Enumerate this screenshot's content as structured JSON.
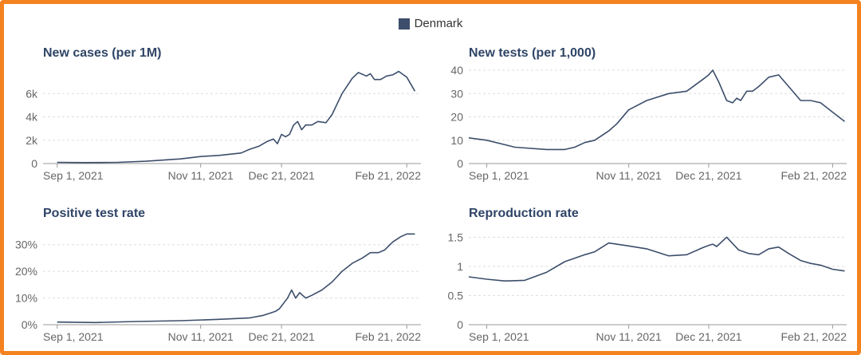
{
  "legend": {
    "label": "Denmark",
    "color": "#3c4e6b"
  },
  "chart_data": [
    {
      "type": "line",
      "title": "New cases (per 1M)",
      "xlabel": "",
      "ylabel": "",
      "x_ticks": [
        "Sep 1, 2021",
        "Nov 11, 2021",
        "Dec 21, 2021",
        "Feb 21, 2022"
      ],
      "y_ticks": [
        "0",
        "2k",
        "4k",
        "6k"
      ],
      "y_tick_values": [
        0,
        2000,
        4000,
        6000
      ],
      "ylim": [
        0,
        8000
      ],
      "x": [
        "2021-09-01",
        "2021-09-15",
        "2021-10-01",
        "2021-10-15",
        "2021-11-01",
        "2021-11-11",
        "2021-11-20",
        "2021-12-01",
        "2021-12-05",
        "2021-12-10",
        "2021-12-14",
        "2021-12-17",
        "2021-12-19",
        "2021-12-21",
        "2021-12-23",
        "2021-12-25",
        "2021-12-27",
        "2021-12-29",
        "2021-12-31",
        "2022-01-02",
        "2022-01-05",
        "2022-01-08",
        "2022-01-12",
        "2022-01-15",
        "2022-01-20",
        "2022-01-25",
        "2022-01-28",
        "2022-02-01",
        "2022-02-03",
        "2022-02-05",
        "2022-02-08",
        "2022-02-11",
        "2022-02-14",
        "2022-02-17",
        "2022-02-21",
        "2022-02-25"
      ],
      "series": [
        {
          "name": "Denmark",
          "values": [
            100,
            80,
            100,
            200,
            400,
            600,
            700,
            900,
            1200,
            1500,
            1900,
            2100,
            1700,
            2500,
            2300,
            2500,
            3300,
            3600,
            2900,
            3300,
            3300,
            3600,
            3500,
            4200,
            6000,
            7300,
            7800,
            7500,
            7700,
            7200,
            7200,
            7500,
            7600,
            7900,
            7400,
            6200
          ]
        }
      ]
    },
    {
      "type": "line",
      "title": "New tests (per 1,000)",
      "xlabel": "",
      "ylabel": "",
      "x_ticks": [
        "Sep 1, 2021",
        "Nov 11, 2021",
        "Dec 21, 2021",
        "Feb 21, 2022"
      ],
      "y_ticks": [
        "0",
        "10",
        "20",
        "30",
        "40"
      ],
      "y_tick_values": [
        0,
        10,
        20,
        30,
        40
      ],
      "ylim": [
        0,
        40
      ],
      "x": [
        "2021-08-23",
        "2021-09-01",
        "2021-09-15",
        "2021-10-01",
        "2021-10-10",
        "2021-10-15",
        "2021-10-20",
        "2021-10-25",
        "2021-11-01",
        "2021-11-05",
        "2021-11-11",
        "2021-11-20",
        "2021-12-01",
        "2021-12-10",
        "2021-12-18",
        "2021-12-21",
        "2021-12-23",
        "2021-12-26",
        "2021-12-30",
        "2022-01-02",
        "2022-01-04",
        "2022-01-06",
        "2022-01-09",
        "2022-01-12",
        "2022-01-15",
        "2022-01-20",
        "2022-01-25",
        "2022-01-30",
        "2022-02-05",
        "2022-02-10",
        "2022-02-15",
        "2022-02-21",
        "2022-02-27"
      ],
      "series": [
        {
          "name": "Denmark",
          "values": [
            11,
            10,
            7,
            6,
            6,
            7,
            9,
            10,
            14,
            17,
            23,
            27,
            30,
            31,
            36,
            38,
            40,
            35,
            27,
            26,
            28,
            27,
            31,
            31,
            33,
            37,
            38,
            33,
            27,
            27,
            26,
            22,
            18
          ]
        }
      ]
    },
    {
      "type": "line",
      "title": "Positive test rate",
      "xlabel": "",
      "ylabel": "",
      "x_ticks": [
        "Sep 1, 2021",
        "Nov 11, 2021",
        "Dec 21, 2021",
        "Feb 21, 2022"
      ],
      "y_ticks": [
        "0%",
        "10%",
        "20%",
        "30%"
      ],
      "y_tick_values": [
        0,
        10,
        20,
        30
      ],
      "ylim": [
        0,
        35
      ],
      "x": [
        "2021-09-01",
        "2021-09-20",
        "2021-10-10",
        "2021-11-01",
        "2021-11-20",
        "2021-12-05",
        "2021-12-12",
        "2021-12-16",
        "2021-12-18",
        "2021-12-20",
        "2021-12-22",
        "2021-12-24",
        "2021-12-26",
        "2021-12-28",
        "2021-12-30",
        "2022-01-02",
        "2022-01-05",
        "2022-01-10",
        "2022-01-15",
        "2022-01-20",
        "2022-01-25",
        "2022-01-30",
        "2022-02-03",
        "2022-02-07",
        "2022-02-10",
        "2022-02-14",
        "2022-02-18",
        "2022-02-21",
        "2022-02-25"
      ],
      "series": [
        {
          "name": "Denmark",
          "values": [
            1,
            0.8,
            1.2,
            1.5,
            2,
            2.5,
            3.5,
            4.5,
            5,
            6,
            8,
            10,
            13,
            10,
            12,
            10,
            11,
            13,
            16,
            20,
            23,
            25,
            27,
            27,
            28,
            31,
            33,
            34,
            34
          ]
        }
      ]
    },
    {
      "type": "line",
      "title": "Reproduction rate",
      "xlabel": "",
      "ylabel": "",
      "x_ticks": [
        "Sep 1, 2021",
        "Nov 11, 2021",
        "Dec 21, 2021",
        "Feb 21, 2022"
      ],
      "y_ticks": [
        "0",
        "0.5",
        "1",
        "1.5"
      ],
      "y_tick_values": [
        0,
        0.5,
        1,
        1.5
      ],
      "ylim": [
        0,
        1.6
      ],
      "x": [
        "2021-08-23",
        "2021-09-01",
        "2021-09-10",
        "2021-09-20",
        "2021-10-01",
        "2021-10-10",
        "2021-10-20",
        "2021-10-25",
        "2021-11-01",
        "2021-11-11",
        "2021-11-20",
        "2021-12-01",
        "2021-12-10",
        "2021-12-18",
        "2021-12-21",
        "2021-12-23",
        "2021-12-25",
        "2021-12-30",
        "2022-01-05",
        "2022-01-10",
        "2022-01-15",
        "2022-01-20",
        "2022-01-25",
        "2022-01-30",
        "2022-02-05",
        "2022-02-10",
        "2022-02-15",
        "2022-02-21",
        "2022-02-27"
      ],
      "series": [
        {
          "name": "Denmark",
          "values": [
            0.82,
            0.78,
            0.75,
            0.76,
            0.9,
            1.08,
            1.2,
            1.25,
            1.4,
            1.35,
            1.3,
            1.18,
            1.2,
            1.32,
            1.36,
            1.38,
            1.34,
            1.5,
            1.28,
            1.22,
            1.2,
            1.3,
            1.33,
            1.22,
            1.1,
            1.05,
            1.02,
            0.95,
            0.92
          ]
        }
      ]
    }
  ]
}
